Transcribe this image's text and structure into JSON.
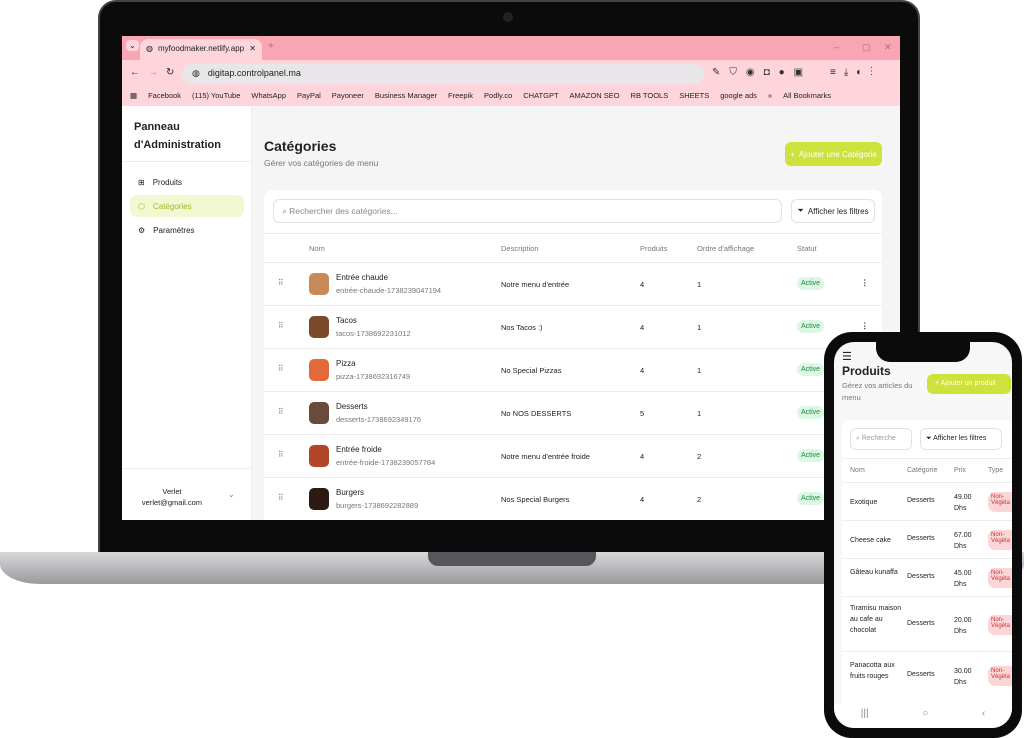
{
  "browser": {
    "tab_title": "myfoodmaker.netlify.app/adm",
    "url": "digitap.controlpanel.ma",
    "bookmarks": [
      "Facebook",
      "(115) YouTube",
      "WhatsApp",
      "PayPal",
      "Payoneer",
      "Business Manager",
      "Freepik",
      "Podly.co",
      "CHATGPT",
      "AMAZON SEO",
      "RB TOOLS",
      "SHEETS",
      "google ads"
    ],
    "all_bookmarks": "All Bookmarks"
  },
  "sidebar": {
    "title_line1": "Panneau",
    "title_line2": "d'Administration",
    "items": [
      {
        "label": "Produits",
        "icon": "gift-icon"
      },
      {
        "label": "Catégories",
        "icon": "box-icon",
        "active": true
      },
      {
        "label": "Paramètres",
        "icon": "gear-icon"
      }
    ],
    "user_name": "Verlet",
    "user_email": "verlet@gmail.com"
  },
  "main": {
    "title": "Catégories",
    "subtitle": "Gérer vos catégories de menu",
    "add_button": "Ajouter une Catégorie",
    "search_placeholder": "Rechercher des catégories...",
    "filter_button": "Afficher les filtres",
    "columns": [
      "Nom",
      "Description",
      "Produits",
      "Ordre d'affichage",
      "Statut"
    ],
    "rows": [
      {
        "name": "Entrée chaude",
        "slug": "entrée-chaude-1738239047194",
        "description": "Notre menu d'entrée",
        "products": "4",
        "order": "1",
        "status": "Active"
      },
      {
        "name": "Tacos",
        "slug": "tacos-1738692231012",
        "description": "Nos Tacos :)",
        "products": "4",
        "order": "1",
        "status": "Active"
      },
      {
        "name": "Pizza",
        "slug": "pizza-1738692316749",
        "description": "No Special Pizzas",
        "products": "4",
        "order": "1",
        "status": "Active"
      },
      {
        "name": "Desserts",
        "slug": "desserts-1738692349176",
        "description": "No NOS DESSERTS",
        "products": "5",
        "order": "1",
        "status": "Active"
      },
      {
        "name": "Entrée froide",
        "slug": "entrée-froide-1738239057784",
        "description": "Notre menu d'entrée froide",
        "products": "4",
        "order": "2",
        "status": "Active"
      },
      {
        "name": "Burgers",
        "slug": "burgers-1738692282889",
        "description": "Nos Special Burgers",
        "products": "4",
        "order": "2",
        "status": "Active"
      }
    ]
  },
  "phone": {
    "title": "Produits",
    "subtitle": "Gérez vos articles du menu",
    "add_button": "Ajouter un produit",
    "search_placeholder": "Recherche",
    "filter_button": "Afficher les filtres",
    "columns": [
      "Nom",
      "Catégorie",
      "Prix",
      "Type"
    ],
    "rows": [
      {
        "name": "Exotique",
        "category": "Desserts",
        "price": "49.00 Dhs",
        "type": "Non-Végéta"
      },
      {
        "name": "Cheese cake",
        "category": "Desserts",
        "price": "67.00 Dhs",
        "type": "Non-Végéta"
      },
      {
        "name": "Gâteau kunaffa",
        "category": "Desserts",
        "price": "45.00 Dhs",
        "type": "Non-Végéta"
      },
      {
        "name": "Tiramisu maison au cafe au chocolat",
        "category": "Desserts",
        "price": "20.00 Dhs",
        "type": "Non-Végéta"
      },
      {
        "name": "Panacotta aux fruits rouges",
        "category": "Desserts",
        "price": "30.00 Dhs",
        "type": "Non-Végéta"
      }
    ]
  },
  "colors": {
    "accent": "#cde23c",
    "browser_frame": "#f8a6b3",
    "status_bg": "#dcf7e3"
  }
}
